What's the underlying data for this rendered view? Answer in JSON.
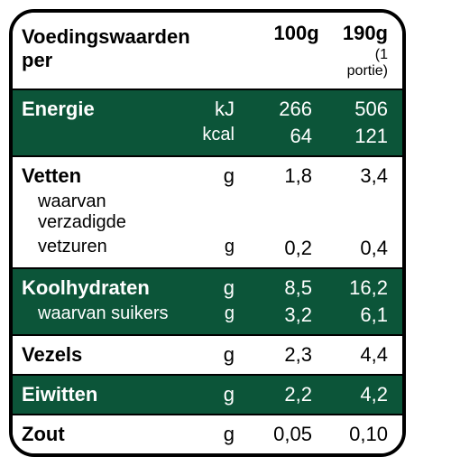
{
  "colors": {
    "dark_bg": "#0c5539",
    "dark_fg": "#ffffff",
    "light_bg": "#ffffff",
    "light_fg": "#000000",
    "border": "#000000"
  },
  "header": {
    "title": "Voedingswaarden per",
    "col1": "100g",
    "col2": "190g",
    "portion_note": "(1 portie)"
  },
  "rows": [
    {
      "style": "dark",
      "lines": [
        {
          "label": "Energie",
          "bold": true,
          "unit": "kJ",
          "v1": "266",
          "v2": "506"
        },
        {
          "label": "",
          "bold": false,
          "unit": "kcal",
          "v1": "64",
          "v2": "121"
        }
      ]
    },
    {
      "style": "light",
      "lines": [
        {
          "label": "Vetten",
          "bold": true,
          "unit": "g",
          "v1": "1,8",
          "v2": "3,4"
        },
        {
          "label": "waarvan verzadigde",
          "bold": false,
          "indent": true,
          "unit": "",
          "v1": "",
          "v2": ""
        },
        {
          "label": "vetzuren",
          "bold": false,
          "indent": true,
          "unit": "g",
          "v1": "0,2",
          "v2": "0,4"
        }
      ]
    },
    {
      "style": "dark",
      "lines": [
        {
          "label": "Koolhydraten",
          "bold": true,
          "unit": "g",
          "v1": "8,5",
          "v2": "16,2"
        },
        {
          "label": "waarvan suikers",
          "bold": false,
          "indent": true,
          "unit": "g",
          "v1": "3,2",
          "v2": "6,1"
        }
      ]
    },
    {
      "style": "light",
      "lines": [
        {
          "label": "Vezels",
          "bold": true,
          "unit": "g",
          "v1": "2,3",
          "v2": "4,4"
        }
      ]
    },
    {
      "style": "dark",
      "lines": [
        {
          "label": "Eiwitten",
          "bold": true,
          "unit": "g",
          "v1": "2,2",
          "v2": "4,2"
        }
      ]
    },
    {
      "style": "light",
      "lines": [
        {
          "label": "Zout",
          "bold": true,
          "unit": "g",
          "v1": "0,05",
          "v2": "0,10"
        }
      ]
    }
  ]
}
